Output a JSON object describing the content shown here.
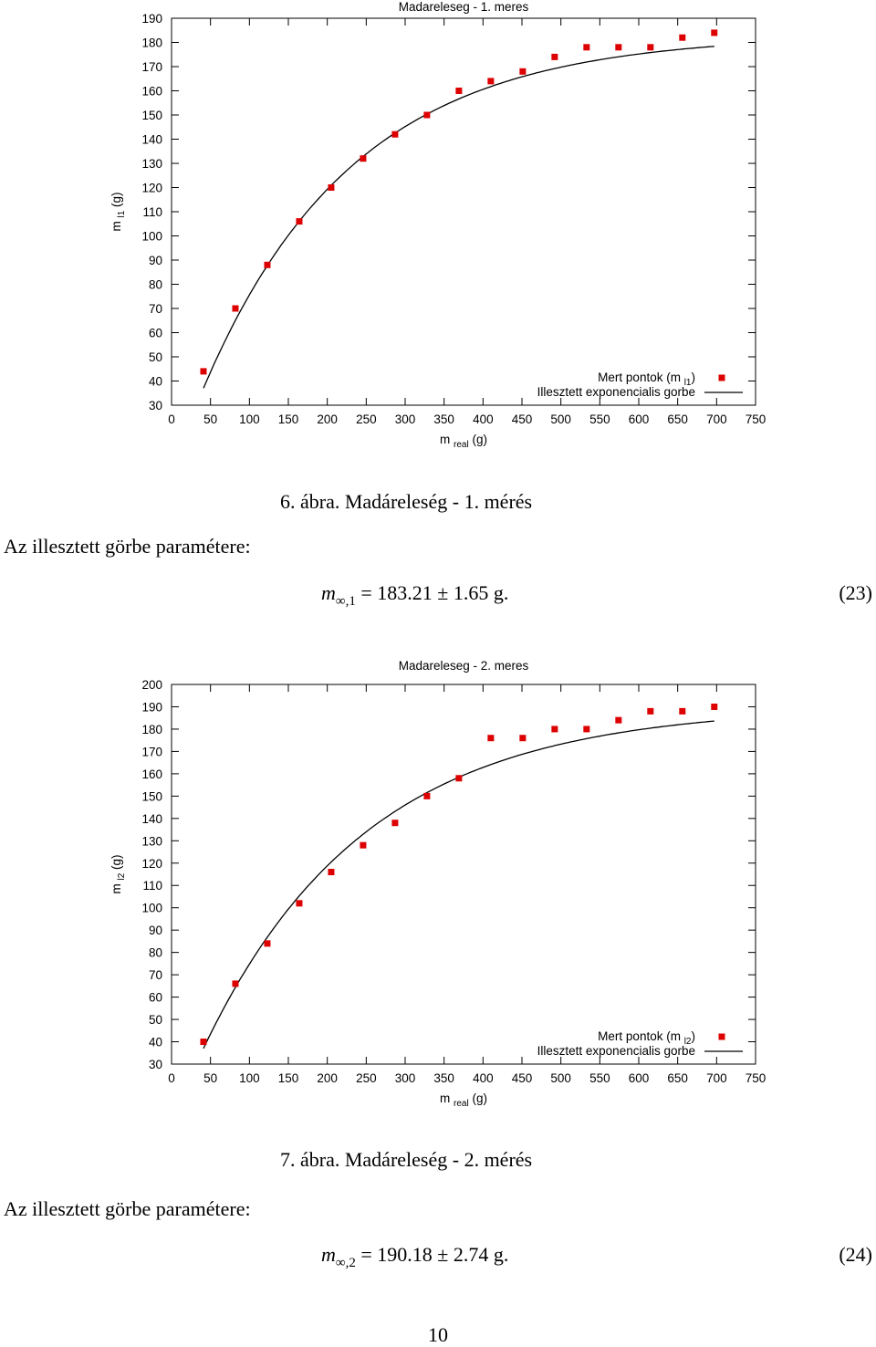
{
  "figures": [
    {
      "caption": "6. ábra. Madáreleség - 1. mérés",
      "paragraph": "Az illesztett görbe paramétere:",
      "equation": {
        "symbol": "m",
        "subscript": "∞,1",
        "value": "= 183.21 ± 1.65 g.",
        "number": "(23)"
      }
    },
    {
      "caption": "7. ábra. Madáreleség - 2. mérés",
      "paragraph": "Az illesztett görbe paramétere:",
      "equation": {
        "symbol": "m",
        "subscript": "∞,2",
        "value": "= 190.18 ± 2.74 g.",
        "number": "(24)"
      }
    }
  ],
  "page_number": "10",
  "chart_data": [
    {
      "type": "scatter",
      "title": "Madareleseg - 1. meres",
      "xlabel": "m real (g)",
      "xlabel_main": "m",
      "xlabel_sub": "real",
      "xlabel_unit": "(g)",
      "ylabel_main": "m",
      "ylabel_sub": "l1",
      "ylabel_unit": "(g)",
      "xlim": [
        0,
        750
      ],
      "ylim": [
        30,
        190
      ],
      "xticks": [
        0,
        50,
        100,
        150,
        200,
        250,
        300,
        350,
        400,
        450,
        500,
        550,
        600,
        650,
        700,
        750
      ],
      "yticks": [
        30,
        40,
        50,
        60,
        70,
        80,
        90,
        100,
        110,
        120,
        130,
        140,
        150,
        160,
        170,
        180,
        190
      ],
      "legend_position": "bottom-right",
      "point_color": "#dd0000",
      "line_color": "#000000",
      "series": [
        {
          "name": "Mert pontok (m l1)",
          "name_main": "Mert pontok (m",
          "name_sub": "l1",
          "name_tail": ")",
          "kind": "points",
          "x": [
            41,
            82,
            123,
            164,
            205,
            246,
            287,
            328,
            369,
            410,
            451,
            492,
            533,
            574,
            615,
            656,
            697
          ],
          "y": [
            44,
            70,
            88,
            106,
            120,
            132,
            142,
            150,
            160,
            164,
            168,
            174,
            178,
            178,
            178,
            182,
            184
          ]
        },
        {
          "name": "Illesztett exponencialis gorbe",
          "kind": "fit",
          "m_inf": 183.21,
          "rate": 0.0052,
          "x_start": 41,
          "x_end": 697,
          "y_at_start": 37
        }
      ]
    },
    {
      "type": "scatter",
      "title": "Madareleseg - 2. meres",
      "xlabel": "m real (g)",
      "xlabel_main": "m",
      "xlabel_sub": "real",
      "xlabel_unit": "(g)",
      "ylabel_main": "m",
      "ylabel_sub": "l2",
      "ylabel_unit": "(g)",
      "xlim": [
        0,
        750
      ],
      "ylim": [
        30,
        200
      ],
      "xticks": [
        0,
        50,
        100,
        150,
        200,
        250,
        300,
        350,
        400,
        450,
        500,
        550,
        600,
        650,
        700,
        750
      ],
      "yticks": [
        30,
        40,
        50,
        60,
        70,
        80,
        90,
        100,
        110,
        120,
        130,
        140,
        150,
        160,
        170,
        180,
        190,
        200
      ],
      "legend_position": "bottom-right",
      "point_color": "#dd0000",
      "line_color": "#000000",
      "series": [
        {
          "name": "Mert pontok (m l2)",
          "name_main": "Mert pontok (m",
          "name_sub": "l2",
          "name_tail": ")",
          "kind": "points",
          "x": [
            41,
            82,
            123,
            164,
            205,
            246,
            287,
            328,
            369,
            410,
            451,
            492,
            533,
            574,
            615,
            656,
            697
          ],
          "y": [
            40,
            66,
            84,
            102,
            116,
            128,
            138,
            150,
            158,
            176,
            176,
            180,
            180,
            184,
            188,
            188,
            190
          ]
        },
        {
          "name": "Illesztett exponencialis gorbe",
          "kind": "fit",
          "m_inf": 190.18,
          "rate": 0.0048,
          "x_start": 41,
          "x_end": 697,
          "y_at_start": 37
        }
      ]
    }
  ]
}
